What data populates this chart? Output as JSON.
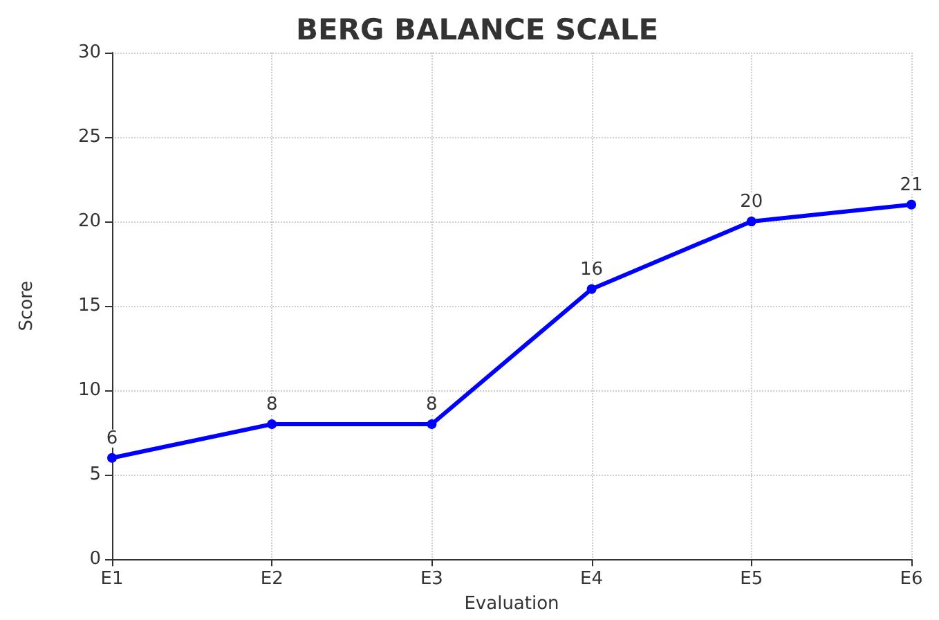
{
  "chart_data": {
    "type": "line",
    "title": "BERG BALANCE SCALE",
    "xlabel": "Evaluation",
    "ylabel": "Score",
    "categories": [
      "E1",
      "E2",
      "E3",
      "E4",
      "E5",
      "E6"
    ],
    "series": [
      {
        "color": "#0000ff",
        "values": [
          6,
          8,
          8,
          16,
          20,
          21
        ]
      }
    ],
    "ylim": [
      0,
      30
    ],
    "yticks": [
      0,
      5,
      10,
      15,
      20,
      25,
      30
    ],
    "grid": true,
    "marker": "circle",
    "line_style": "solid",
    "data_labels": true
  }
}
